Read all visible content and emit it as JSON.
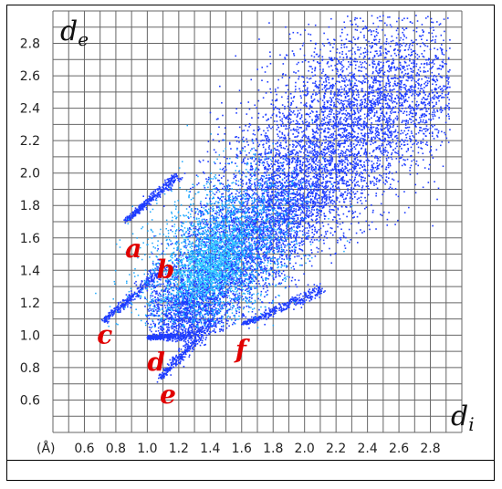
{
  "chart_data": {
    "type": "scatter",
    "subtype": "hirshfeld-fingerprint-plot",
    "xlabel_main": "d",
    "xlabel_sub": "i",
    "ylabel_main": "d",
    "ylabel_sub": "e",
    "x_unit_label": "(Å)",
    "xlim": [
      0.4,
      3.0
    ],
    "ylim": [
      0.4,
      3.0
    ],
    "x_ticks": [
      "0.6",
      "0.8",
      "1.0",
      "1.2",
      "1.4",
      "1.6",
      "1.8",
      "2.0",
      "2.2",
      "2.4",
      "2.6",
      "2.8"
    ],
    "y_ticks": [
      "0.6",
      "0.8",
      "1.0",
      "1.2",
      "1.4",
      "1.6",
      "1.8",
      "2.0",
      "2.2",
      "2.4",
      "2.6",
      "2.8"
    ],
    "grid": true,
    "color_scale": [
      "#1e3cff",
      "#1aa7ff",
      "#3ddcff"
    ],
    "annotations": [
      {
        "label": "a",
        "x": 0.86,
        "y": 1.48
      },
      {
        "label": "b",
        "x": 1.06,
        "y": 1.35
      },
      {
        "label": "c",
        "x": 0.68,
        "y": 0.95
      },
      {
        "label": "d",
        "x": 1.0,
        "y": 0.78
      },
      {
        "label": "e",
        "x": 1.08,
        "y": 0.58
      },
      {
        "label": "f",
        "x": 1.56,
        "y": 0.86
      }
    ]
  }
}
